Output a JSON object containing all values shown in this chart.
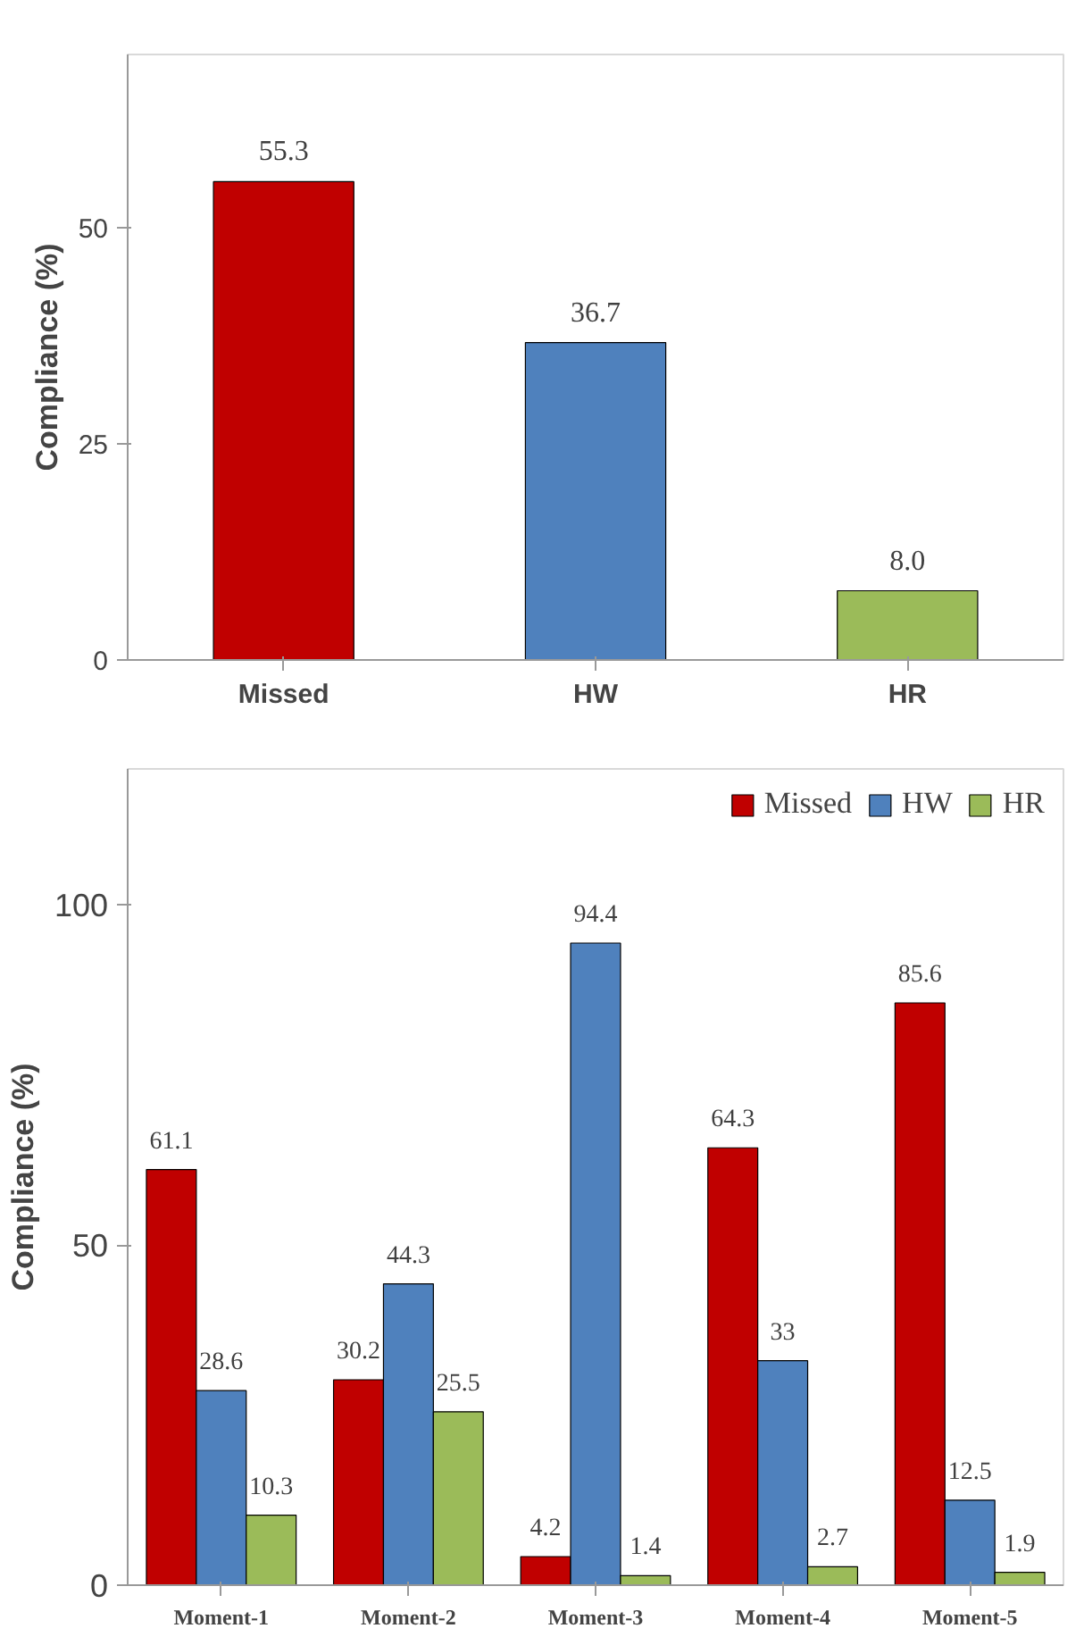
{
  "chart_data": [
    {
      "type": "bar",
      "ylabel": "Compliance (%)",
      "categories": [
        "Missed",
        "HW",
        "HR"
      ],
      "values": [
        55.3,
        36.7,
        8.0
      ],
      "colors": [
        "#c00000",
        "#4f81bd",
        "#9bbb59"
      ],
      "value_labels": [
        "55.3",
        "36.7",
        "8.0"
      ],
      "ylim": [
        0,
        70
      ],
      "yticks": [
        0,
        25,
        50
      ],
      "grid": false,
      "legend": false
    },
    {
      "type": "bar",
      "ylabel": "Compliance (%)",
      "categories": [
        "Moment-1",
        "Moment-2",
        "Moment-3",
        "Moment-4",
        "Moment-5"
      ],
      "series": [
        {
          "name": "Missed",
          "color": "#c00000",
          "values": [
            61.1,
            30.2,
            4.2,
            64.3,
            85.6
          ]
        },
        {
          "name": "HW",
          "color": "#4f81bd",
          "values": [
            28.6,
            44.3,
            94.4,
            33,
            12.5
          ]
        },
        {
          "name": "HR",
          "color": "#9bbb59",
          "values": [
            10.3,
            25.5,
            1.4,
            2.7,
            1.9
          ]
        }
      ],
      "data_labels": true,
      "ylim": [
        0,
        120
      ],
      "yticks": [
        0,
        50,
        100
      ],
      "grid": false,
      "legend": "top right"
    }
  ]
}
